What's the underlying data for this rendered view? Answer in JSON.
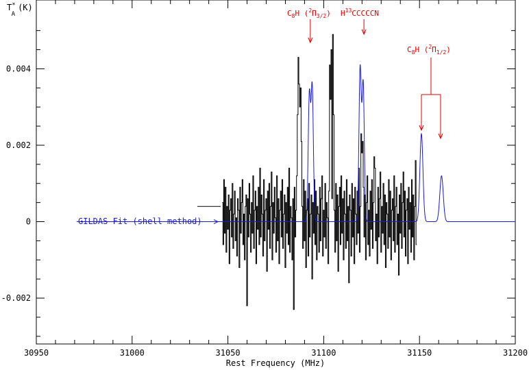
{
  "chart_data": {
    "type": "line",
    "ylabel": "T",
    "ylabel_sub": "A",
    "ylabel_sup": "*",
    "ylabel_unit": "(K)",
    "xlabel": "Rest Frequency (MHz)",
    "xlim": [
      30950,
      31200
    ],
    "ylim": [
      -0.0032,
      0.0058
    ],
    "xticks": [
      30950,
      31000,
      31050,
      31100,
      31150,
      31200
    ],
    "xtick_labels": [
      "30950",
      "31000",
      "31050",
      "31100",
      "31150",
      "31200"
    ],
    "yticks": [
      -0.002,
      0,
      0.002,
      0.004
    ],
    "ytick_labels": [
      "-0.002",
      "0",
      "0.002",
      "0.004"
    ],
    "grid": false,
    "series": [
      {
        "name": "",
        "role": "observed spectrum",
        "color": "#000000",
        "x_start": 31047,
        "x_step": 0.4,
        "values": [
          0.0005,
          -0.0006,
          0.0011,
          -0.0003,
          0.0009,
          -0.0008,
          0.0004,
          -0.0002,
          0.0007,
          -0.0011,
          0.0003,
          0.0006,
          -0.0004,
          0.001,
          -0.0007,
          0.0002,
          0.0008,
          -0.0005,
          0.0001,
          -0.0009,
          0.0006,
          0.0003,
          -0.0012,
          0.0009,
          -0.0003,
          0.0005,
          0.0011,
          -0.0006,
          0.0002,
          -0.001,
          0.0004,
          0.0007,
          -0.0022,
          0.0006,
          -0.0004,
          0.001,
          0.0002,
          -0.0008,
          0.0005,
          -0.0003,
          0.0012,
          -0.0007,
          0.0003,
          0.0008,
          -0.0011,
          0.0004,
          -0.0002,
          0.0009,
          -0.0006,
          0.0014,
          -0.0004,
          0.0007,
          0.0002,
          -0.0009,
          0.0011,
          -0.0005,
          0.0003,
          0.0006,
          -0.0013,
          0.0008,
          -0.0002,
          0.001,
          -0.0007,
          0.0004,
          0.0013,
          -0.001,
          0.0005,
          -0.0003,
          0.0009,
          0.0001,
          -0.0008,
          0.0012,
          -0.0005,
          0.0006,
          -0.0011,
          0.0003,
          0.0008,
          -0.0004,
          0.0011,
          -0.0007,
          0.0002,
          0.0007,
          -0.0012,
          0.0005,
          -0.0003,
          0.0009,
          -0.0006,
          0.0014,
          -0.0008,
          0.0004,
          0.0001,
          -0.001,
          0.0006,
          -0.0023,
          0.0009,
          -0.0004,
          0.0003,
          0.0012,
          0.0028,
          0.0043,
          0.0036,
          0.003,
          0.0035,
          0.0021,
          0.0004,
          -0.0007,
          0.0011,
          -0.0005,
          0.0008,
          -0.0012,
          0.0003,
          0.0006,
          -0.0009,
          0.001,
          -0.0004,
          0.0002,
          0.0007,
          -0.0015,
          0.0005,
          -0.0003,
          0.0011,
          -0.0006,
          0.0008,
          -0.001,
          0.0004,
          0.0002,
          -0.0008,
          0.0009,
          -0.0005,
          0.0006,
          0.0012,
          -0.0009,
          0.0003,
          -0.0004,
          0.001,
          -0.0007,
          0.0005,
          0.0001,
          -0.0011,
          0.0008,
          0.0041,
          0.0032,
          0.0045,
          0.0006,
          0.0049,
          0.0028,
          0.0003,
          -0.0008,
          0.001,
          -0.0005,
          0.0007,
          -0.0013,
          0.0004,
          0.0009,
          -0.0006,
          0.0012,
          -0.0003,
          0.0006,
          -0.001,
          0.0008,
          0.0002,
          -0.0007,
          0.0011,
          -0.0005,
          0.0004,
          -0.0016,
          0.0007,
          0.0003,
          -0.0009,
          0.001,
          -0.0004,
          0.0006,
          -0.0011,
          0.0009,
          0.0002,
          -0.0006,
          0.0008,
          -0.0003,
          0.0014,
          -0.0008,
          0.0004,
          0.0023,
          0.0018,
          0.0021,
          0.0009,
          -0.0004,
          0.0007,
          -0.001,
          0.0005,
          0.0012,
          -0.0006,
          0.0003,
          -0.0009,
          0.0008,
          -0.0002,
          0.0011,
          -0.0007,
          0.0005,
          0.0017,
          0.0014,
          -0.0005,
          0.0002,
          -0.0011,
          0.0009,
          -0.0004,
          0.0006,
          0.0013,
          -0.0008,
          0.0004,
          -0.0003,
          0.001,
          -0.0006,
          0.0007,
          -0.0012,
          0.0005,
          0.0002,
          -0.0007,
          0.0011,
          -0.0004,
          0.0008,
          -0.001,
          0.0003,
          0.0006,
          -0.0005,
          0.0012,
          -0.0008,
          0.0004,
          0.0009,
          -0.0006,
          0.0002,
          -0.0014,
          0.0007,
          -0.0003,
          0.001,
          -0.0007,
          0.0005,
          0.0013,
          -0.0004,
          0.0008,
          -0.0009,
          0.0003,
          0.0006,
          -0.0011,
          0.0009,
          -0.0002,
          0.0005,
          -0.0008,
          0.0011,
          -0.0004,
          0.0007,
          -0.001,
          0.0004,
          0.0016,
          -0.0006
        ]
      },
      {
        "name": "GILDAS Fit (shell method)",
        "role": "fit",
        "color": "#1a1ad0",
        "peaks": [
          {
            "x": 31092.5,
            "y": 0.0033,
            "w": 0.6
          },
          {
            "x": 31094.0,
            "y": 0.0035,
            "w": 0.6
          },
          {
            "x": 31119.0,
            "y": 0.004,
            "w": 0.6
          },
          {
            "x": 31120.6,
            "y": 0.0036,
            "w": 0.6
          },
          {
            "x": 31151.0,
            "y": 0.0023,
            "w": 0.8
          },
          {
            "x": 31161.5,
            "y": 0.0012,
            "w": 0.9
          }
        ]
      }
    ],
    "annotations": [
      {
        "label_main": "C",
        "label_sub": "8",
        "label_rest": "H (",
        "label_sup2": "2",
        "label_pi": "Π",
        "label_sub2": "3/2",
        "label_close": ")",
        "x": 31093,
        "arrow_targets": [
          31093
        ]
      },
      {
        "label_main": "H",
        "label_sup": "13",
        "label_rest": "CCCCCN",
        "x": 31121,
        "arrow_targets": [
          31121
        ]
      },
      {
        "label_main": "C",
        "label_sub": "8",
        "label_rest": "H (",
        "label_sup2": "2",
        "label_pi": "Π",
        "label_sub2": "1/2",
        "label_close": ")",
        "x": 31156,
        "arrow_targets": [
          31151,
          31161
        ]
      }
    ],
    "fit_label": "GILDAS Fit (shell method)",
    "colors": {
      "annotation": "#e00000",
      "fit": "#1a1ad0",
      "data": "#000000"
    }
  }
}
